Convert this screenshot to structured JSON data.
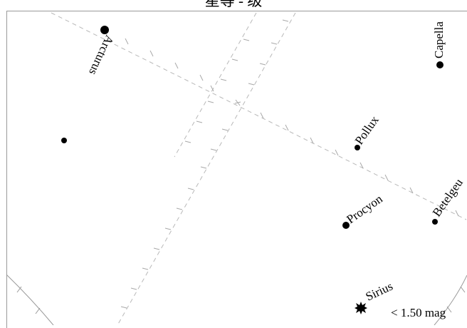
{
  "title": "星等 - 级",
  "stars": [
    {
      "name": "Arcturus",
      "label": "Arcturus"
    },
    {
      "name": "Capella",
      "label": "Capella"
    },
    {
      "name": "Pollux",
      "label": "Pollux"
    },
    {
      "name": "Procyon",
      "label": "Procyon"
    },
    {
      "name": "Betelgeuse",
      "label": "Betelgeu"
    },
    {
      "name": "Sirius",
      "label": "Sirius"
    },
    {
      "name": "unlabeled-star",
      "label": ""
    }
  ],
  "legend": {
    "label": "< 1.50 mag",
    "symbol": "star-burst-icon"
  },
  "colors": {
    "star": "#000000",
    "grid": "#b8b8b8",
    "frame": "#9a9a9a"
  }
}
